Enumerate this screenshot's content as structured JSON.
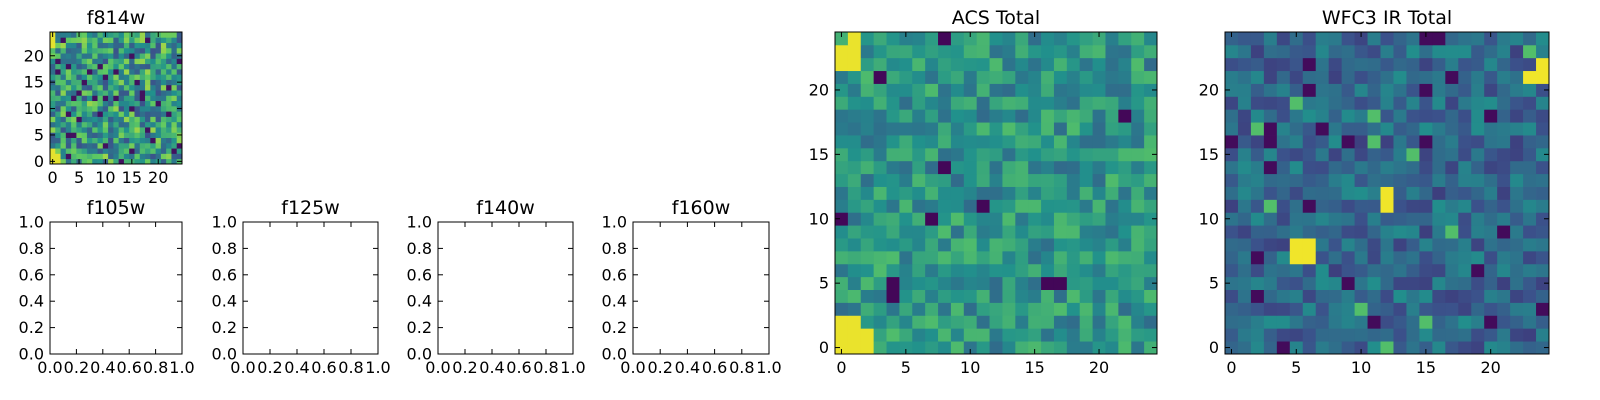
{
  "chart_data": [
    {
      "type": "heatmap",
      "title": "f814w",
      "xlabel": "",
      "ylabel": "",
      "xlim": [
        -0.5,
        24.5
      ],
      "ylim": [
        -0.5,
        24.5
      ],
      "xticks": [
        0,
        5,
        10,
        15,
        20
      ],
      "yticks": [
        0,
        5,
        10,
        15,
        20
      ],
      "grid": false,
      "colormap": "viridis",
      "values_note_min_max": [
        0,
        1
      ],
      "seed": 814
    },
    {
      "type": "empty",
      "title": "f105w",
      "xlim": [
        0,
        1
      ],
      "ylim": [
        0,
        1
      ],
      "xticks": [
        "0.0",
        "0.2",
        "0.4",
        "0.6",
        "0.8",
        "1.0"
      ],
      "yticks": [
        "0.0",
        "0.2",
        "0.4",
        "0.6",
        "0.8",
        "1.0"
      ]
    },
    {
      "type": "empty",
      "title": "f125w",
      "xlim": [
        0,
        1
      ],
      "ylim": [
        0,
        1
      ],
      "xticks": [
        "0.0",
        "0.2",
        "0.4",
        "0.6",
        "0.8",
        "1.0"
      ],
      "yticks": [
        "0.0",
        "0.2",
        "0.4",
        "0.6",
        "0.8",
        "1.0"
      ]
    },
    {
      "type": "empty",
      "title": "f140w",
      "xlim": [
        0,
        1
      ],
      "ylim": [
        0,
        1
      ],
      "xticks": [
        "0.0",
        "0.2",
        "0.4",
        "0.6",
        "0.8",
        "1.0"
      ],
      "yticks": [
        "0.0",
        "0.2",
        "0.4",
        "0.6",
        "0.8",
        "1.0"
      ]
    },
    {
      "type": "empty",
      "title": "f160w",
      "xlim": [
        0,
        1
      ],
      "ylim": [
        0,
        1
      ],
      "xticks": [
        "0.0",
        "0.2",
        "0.4",
        "0.6",
        "0.8",
        "1.0"
      ],
      "yticks": [
        "0.0",
        "0.2",
        "0.4",
        "0.6",
        "0.8",
        "1.0"
      ]
    },
    {
      "type": "heatmap",
      "title": "ACS Total",
      "xlim": [
        -0.5,
        24.5
      ],
      "ylim": [
        -0.5,
        24.5
      ],
      "xticks": [
        0,
        5,
        10,
        15,
        20
      ],
      "yticks": [
        0,
        5,
        10,
        15,
        20
      ],
      "grid": false,
      "colormap": "viridis",
      "seed": 4242
    },
    {
      "type": "heatmap",
      "title": "WFC3 IR Total",
      "xlim": [
        -0.5,
        24.5
      ],
      "ylim": [
        -0.5,
        24.5
      ],
      "xticks": [
        0,
        5,
        10,
        15,
        20
      ],
      "yticks": [
        0,
        5,
        10,
        15,
        20
      ],
      "grid": false,
      "colormap": "viridis",
      "seed": 3131
    }
  ]
}
